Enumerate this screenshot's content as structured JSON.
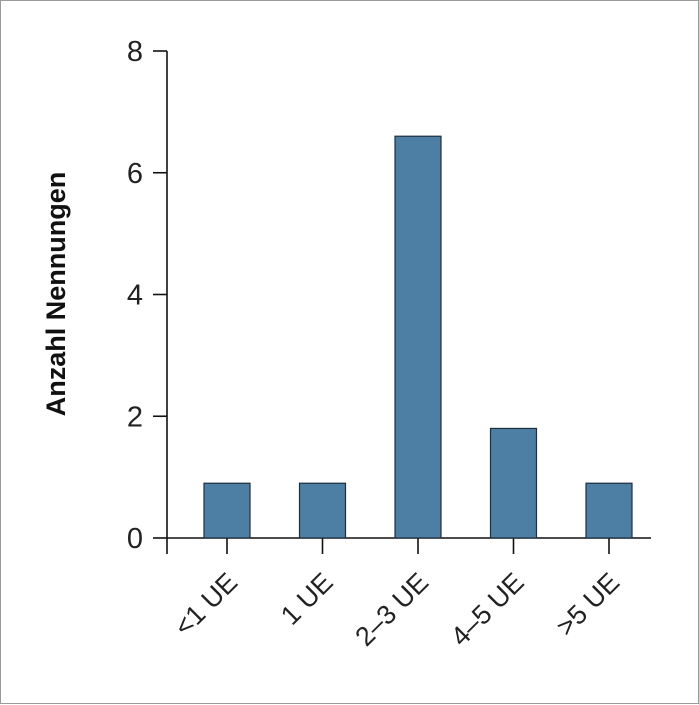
{
  "chart_data": {
    "type": "bar",
    "title": "",
    "xlabel": "",
    "ylabel": "Anzahl Nennungen",
    "categories": [
      "<1 UE",
      "1 UE",
      "2–3 UE",
      "4–5 UE",
      ">5 UE"
    ],
    "values": [
      0.9,
      0.9,
      6.6,
      1.8,
      0.9
    ],
    "ylim": [
      0,
      8
    ],
    "yticks": [
      0,
      2,
      4,
      6,
      8
    ],
    "grid": false,
    "legend": "none",
    "bar_color": "#4d7ea3",
    "bar_edge_color": "#1f2f3d"
  }
}
